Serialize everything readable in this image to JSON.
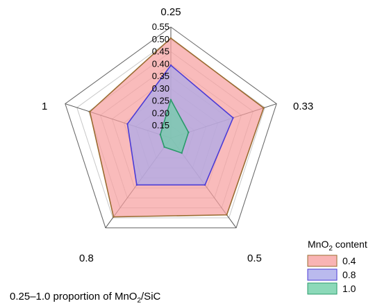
{
  "chart_data": {
    "type": "radar",
    "categories": [
      "0.25",
      "0.33",
      "0.5",
      "0.8",
      "1"
    ],
    "rlim": [
      0.1,
      0.55
    ],
    "ticks": [
      0.15,
      0.2,
      0.25,
      0.3,
      0.35,
      0.4,
      0.45,
      0.5,
      0.55
    ],
    "tick_labels": [
      "0.15",
      "0.20",
      "0.25",
      "0.30",
      "0.35",
      "0.40",
      "0.45",
      "0.50",
      "0.55"
    ],
    "series": [
      {
        "name": "0.4",
        "values": [
          0.505,
          0.495,
          0.485,
          0.495,
          0.445
        ],
        "fill": "#f7a1a1",
        "stroke": "#9a6b30"
      },
      {
        "name": "0.8",
        "values": [
          0.395,
          0.365,
          0.335,
          0.335,
          0.285
        ],
        "fill": "#a9a9ea",
        "stroke": "#4b3bd6"
      },
      {
        "name": "1.0",
        "values": [
          0.255,
          0.175,
          0.175,
          0.145,
          0.145
        ],
        "fill": "#6fcfa8",
        "stroke": "#2a9a6a"
      }
    ],
    "legend": {
      "title_main": "MnO",
      "title_sub": "2",
      "title_rest": " content",
      "position": "bottom-right"
    },
    "caption": {
      "main": "0.25–1.0 proportion of MnO",
      "sub": "2",
      "rest": "/SiC"
    },
    "grid": true
  }
}
